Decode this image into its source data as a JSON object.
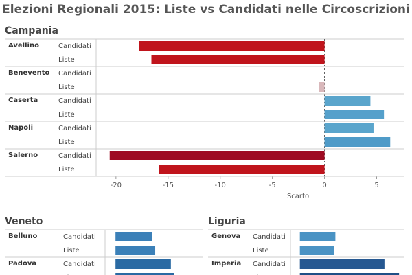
{
  "title": "Elezioni Regionali 2015: Liste vs Candidati nelle Circoscrizioni",
  "chart_data": [
    {
      "type": "bar",
      "title": "Campania",
      "x_label": "Scarto",
      "categories": [
        "Avellino",
        "Benevento",
        "Caserta",
        "Napoli",
        "Salerno"
      ],
      "series": [
        {
          "name": "Candidati",
          "values": [
            -17.8,
            0,
            4.4,
            4.7,
            -20.6
          ],
          "colors": [
            "#c0141c",
            "#d9b8bb",
            "#5aa5cc",
            "#5aa5cc",
            "#9e0a22"
          ]
        },
        {
          "name": "Liste",
          "values": [
            -16.6,
            -0.5,
            5.7,
            6.3,
            -15.9
          ],
          "colors": [
            "#c0141c",
            "#d9b8bb",
            "#55a0cb",
            "#4f9bc8",
            "#c0141c"
          ]
        }
      ],
      "xlim": [
        -21.9,
        7.6
      ],
      "xticks": [
        -20,
        -15,
        -10,
        -5,
        0,
        5
      ]
    },
    {
      "type": "bar",
      "title": "Veneto",
      "categories": [
        "Belluno",
        "Padova"
      ],
      "series": [
        {
          "name": "Candidati",
          "values": [
            3.5,
            5.3
          ],
          "colors": [
            "#3b80b8",
            "#2a6aa3"
          ]
        },
        {
          "name": "Liste",
          "values": [
            3.8,
            5.6
          ],
          "colors": [
            "#3b80b8",
            "#2a6aa3"
          ]
        }
      ],
      "xlim": [
        -1,
        8.4
      ]
    },
    {
      "type": "bar",
      "title": "Liguria",
      "categories": [
        "Genova",
        "Imperia"
      ],
      "series": [
        {
          "name": "Candidati",
          "values": [
            3.4,
            8.1
          ],
          "colors": [
            "#4a93c4",
            "#265891"
          ]
        },
        {
          "name": "Liste",
          "values": [
            3.3,
            9.5
          ],
          "colors": [
            "#4a93c4",
            "#1f4f86"
          ]
        }
      ],
      "xlim": [
        -0.9,
        9.95
      ]
    }
  ]
}
